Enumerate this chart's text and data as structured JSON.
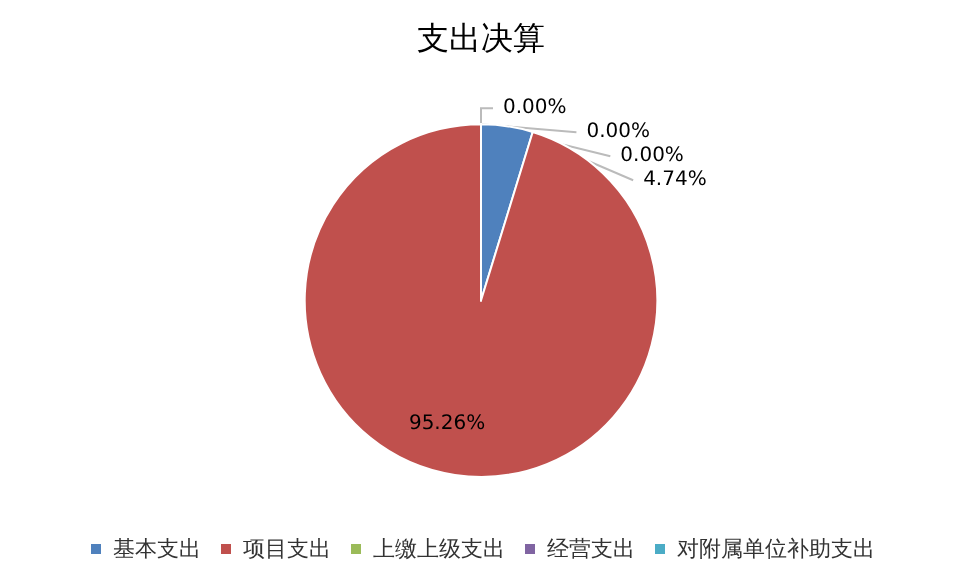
{
  "chart_data": {
    "type": "pie",
    "title": "支出决算",
    "categories": [
      "基本支出",
      "项目支出",
      "上缴上级支出",
      "经营支出",
      "对附属单位补助支出"
    ],
    "values": [
      4.74,
      95.26,
      0.0,
      0.0,
      0.0
    ],
    "colors": [
      "#4f81bd",
      "#c0504d",
      "#9bbb59",
      "#8064a2",
      "#4bacc6"
    ],
    "value_labels": [
      "4.74%",
      "95.26%",
      "0.00%",
      "0.00%",
      "0.00%"
    ],
    "legend": "bottom"
  }
}
